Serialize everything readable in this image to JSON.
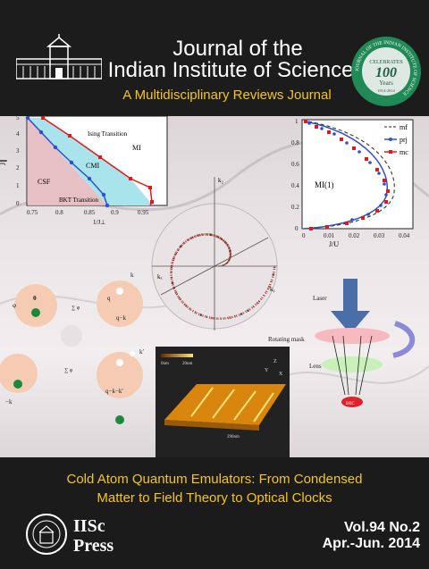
{
  "journal": {
    "title_line1": "Journal of the",
    "title_line2": "Indian Institute of Science",
    "subtitle": "A Multidisciplinary Reviews Journal"
  },
  "badge": {
    "ring_text": "JOURNAL OF THE INDIAN INSTITUTE OF SCIENCE",
    "celebrates": "CELEBRATES",
    "number": "100",
    "years": "Years",
    "range": "1914-2014"
  },
  "figure_left": {
    "ylabel": "J∥",
    "xlabel": "1/J⊥",
    "y_ticks": [
      "5",
      "4",
      "3",
      "2",
      "1",
      "0"
    ],
    "x_ticks": [
      "0.75",
      "0.8",
      "0.85",
      "0.9",
      "0.95"
    ],
    "labels": {
      "ising": "Ising Transition",
      "mi": "MI",
      "cmi": "CMI",
      "csf": "CSF",
      "bkt": "BKT Transition"
    }
  },
  "figure_right": {
    "x_ticks": [
      "0",
      "0.01",
      "0.02",
      "0.03",
      "0.04"
    ],
    "y_ticks": [
      "1",
      "0.8",
      "0.6",
      "0.4",
      "0.2",
      "0"
    ],
    "xlabel": "J/U",
    "region": "MI(1)",
    "legend": [
      "mf",
      "prj",
      "mc"
    ]
  },
  "sphere": {
    "kz": "k₂",
    "kx": "kₓ",
    "ky": "kᵧ"
  },
  "diagram_left": {
    "phi": "φ",
    "theta": "θ",
    "k": "k",
    "q": "q",
    "qk": "q−k",
    "qkk": "q−k−k′",
    "kprime": "k′",
    "neg_k": "−k"
  },
  "diagram_right": {
    "laser": "Laser",
    "mask": "Rotating mask",
    "lens": "Lens",
    "bec": "BEC"
  },
  "afm": {
    "scale1": "0nm",
    "scale2": "20nm",
    "axis_x": "X",
    "axis_y": "Y",
    "axis_z": "Z",
    "bar": "290nm"
  },
  "footer": {
    "issue_line1": "Cold Atom Quantum Emulators: From Condensed",
    "issue_line2": "Matter to Field Theory to Optical Clocks",
    "press_line1": "IISc",
    "press_line2": "Press",
    "volume": "Vol.94 No.2",
    "date": "Apr.-Jun. 2014"
  },
  "colors": {
    "accent": "#f5c518",
    "background": "#1b1b1b",
    "badge_green": "#1f8a55",
    "plot_blue": "#2f4fd0",
    "plot_red": "#e01a1a"
  }
}
